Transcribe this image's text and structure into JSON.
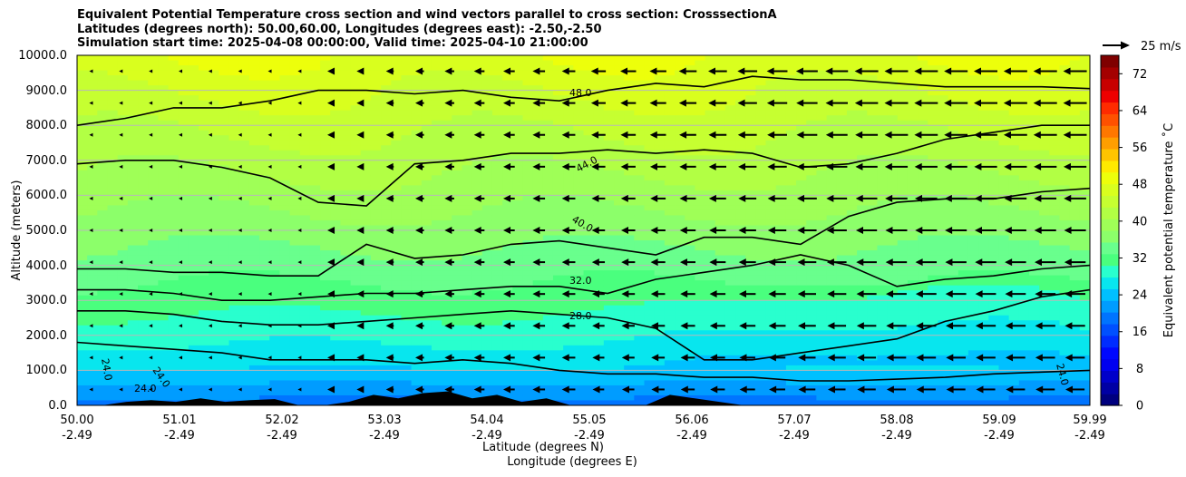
{
  "chart_data": {
    "type": "contourf",
    "title_lines": [
      "Equivalent Potential Temperature cross section and wind vectors parallel to cross section: CrosssectionA",
      "Latitudes (degrees north): 50.00,60.00, Longitudes (degrees east): -2.50,-2.50",
      "Simulation start time: 2025-04-08 00:00:00, Valid time: 2025-04-10 21:00:00"
    ],
    "ylabel": "Altitude (meters)",
    "xlabel_lat": "Latitude (degrees N)",
    "xlabel_lon": "Longitude (degrees E)",
    "ylim": [
      0,
      10000
    ],
    "y_ticks": [
      "0.0",
      "1000.0",
      "2000.0",
      "3000.0",
      "4000.0",
      "5000.0",
      "6000.0",
      "7000.0",
      "8000.0",
      "9000.0",
      "10000.0"
    ],
    "x_ticks_lat": [
      "50.00",
      "51.01",
      "52.02",
      "53.03",
      "54.04",
      "55.05",
      "56.06",
      "57.07",
      "58.08",
      "59.09",
      "59.99"
    ],
    "x_ticks_lon": [
      "-2.49",
      "-2.49",
      "-2.49",
      "-2.49",
      "-2.49",
      "-2.49",
      "-2.49",
      "-2.49",
      "-2.49",
      "-2.49",
      "-2.49"
    ],
    "colorbar": {
      "label": "Equivalent potential temperature ˚C",
      "range": [
        0,
        76
      ],
      "ticks": [
        "0",
        "8",
        "16",
        "24",
        "32",
        "40",
        "48",
        "56",
        "64",
        "72"
      ]
    },
    "quiver_key_label": "25 m/s",
    "contour_labels": [
      "48.0",
      "44.0",
      "40.0",
      "32.0",
      "28.0",
      "24.0",
      "24.0",
      "24.0",
      "24.0"
    ],
    "contours": [
      {
        "level": 48,
        "y": [
          8000,
          8200,
          8500,
          8500,
          8700,
          9000,
          9000,
          8900,
          9000,
          8800,
          8700,
          9000,
          9200,
          9100,
          9400,
          9300,
          9300,
          9200,
          9100,
          9100,
          9100,
          9050
        ]
      },
      {
        "level": 44,
        "y": [
          6900,
          7000,
          7000,
          6800,
          6500,
          5800,
          5700,
          6900,
          7000,
          7200,
          7200,
          7300,
          7200,
          7300,
          7200,
          6800,
          6900,
          7200,
          7600,
          7800,
          8000,
          8000
        ]
      },
      {
        "level": 40,
        "y": [
          3900,
          3900,
          3800,
          3800,
          3700,
          3700,
          4600,
          4200,
          4300,
          4600,
          4700,
          4500,
          4300,
          4800,
          4800,
          4600,
          5400,
          5800,
          5900,
          5900,
          6100,
          6200
        ]
      },
      {
        "level": 32,
        "y": [
          3300,
          3300,
          3200,
          3000,
          3000,
          3100,
          3200,
          3200,
          3300,
          3400,
          3400,
          3200,
          3600,
          3800,
          4000,
          4300,
          4000,
          3400,
          3600,
          3700,
          3900,
          4000
        ]
      },
      {
        "level": 28,
        "y": [
          2700,
          2700,
          2600,
          2400,
          2300,
          2300,
          2400,
          2500,
          2600,
          2700,
          2600,
          2500,
          2200,
          1300,
          1300,
          1500,
          1700,
          1900,
          2400,
          2700,
          3100,
          3300
        ]
      },
      {
        "level": 24,
        "y": [
          1800,
          1700,
          1600,
          1500,
          1300,
          1300,
          1300,
          1200,
          1300,
          1200,
          1000,
          900,
          900,
          800,
          800,
          700,
          700,
          750,
          800,
          900,
          950,
          1000
        ]
      }
    ],
    "terrain_height_m": [
      0,
      0,
      100,
      150,
      100,
      200,
      100,
      150,
      180,
      0,
      0,
      100,
      300,
      200,
      350,
      400,
      200,
      300,
      100,
      200,
      0,
      0,
      0,
      0,
      300,
      200,
      100,
      0,
      0,
      0,
      0,
      0,
      0,
      0,
      0,
      0,
      0,
      0,
      0,
      0,
      0,
      0
    ]
  },
  "colors": {
    "levels": [
      "#00007f",
      "#0000a4",
      "#0000ca",
      "#0000f0",
      "#0008ff",
      "#002cff",
      "#0050ff",
      "#0074ff",
      "#009cff",
      "#00c0ff",
      "#08e6ee",
      "#29ffce",
      "#4aff7e",
      "#69ff8d",
      "#8cff6a",
      "#9fff57",
      "#b2ff44",
      "#c6ff31",
      "#d9ff1e",
      "#edff0b",
      "#ffea00",
      "#ffc400",
      "#ff9e00",
      "#ff7700",
      "#ff5100",
      "#ff2b00",
      "#ee0000",
      "#c80000",
      "#a40000",
      "#7f0000"
    ]
  }
}
